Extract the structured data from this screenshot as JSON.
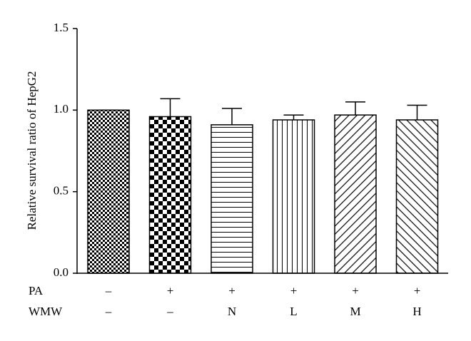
{
  "chart_data": {
    "type": "bar",
    "y_label": "Relative survival ratio of HepG2",
    "categories": [
      null,
      null,
      null,
      null,
      null,
      null
    ],
    "values": [
      1.0,
      0.96,
      0.91,
      0.94,
      0.97,
      0.94
    ],
    "errors": [
      0,
      0.11,
      0.1,
      0.03,
      0.08,
      0.09
    ],
    "color": "#000000",
    "ylim": [
      0,
      1.5
    ],
    "yticks": [
      {
        "value": 0,
        "label": "0.0"
      },
      0.5,
      {
        "value": 1,
        "label": "1.0"
      },
      1.5
    ],
    "factors": [
      {
        "label": "PA",
        "values": [
          "–",
          "+",
          "+",
          "+",
          "+",
          "+"
        ]
      },
      {
        "label": "WMW",
        "values": [
          "–",
          "–",
          "N",
          "L",
          "M",
          "H"
        ]
      }
    ]
  }
}
